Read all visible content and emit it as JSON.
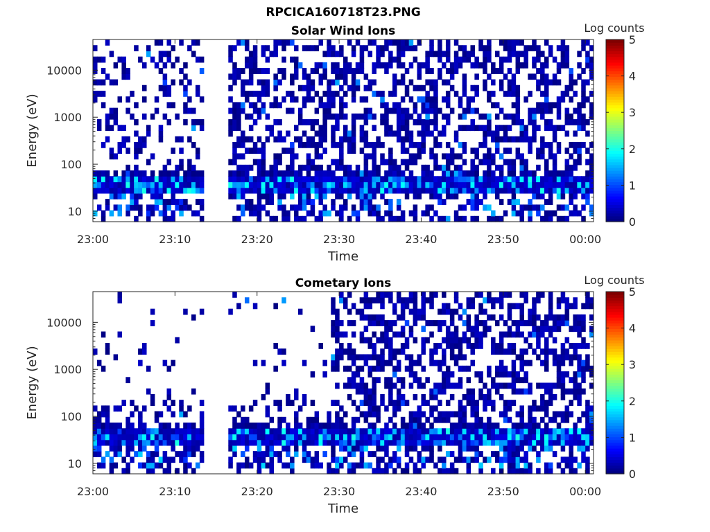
{
  "figure": {
    "title": "RPCICA160718T23.PNG"
  },
  "colorbar": {
    "label": "Log counts",
    "ticks": [
      "0",
      "1",
      "2",
      "3",
      "4",
      "5"
    ],
    "range": [
      0,
      5
    ],
    "colormap": "jet"
  },
  "chart_data": [
    {
      "type": "heatmap",
      "title": "Solar Wind Ions",
      "xlabel": "Time",
      "ylabel": "Energy (eV)",
      "xticks": [
        "23:00",
        "23:10",
        "23:20",
        "23:30",
        "23:40",
        "23:50",
        "00:00"
      ],
      "xlim_minutes": [
        0,
        61
      ],
      "yticks": [
        "10",
        "100",
        "1000",
        "10000"
      ],
      "yscale": "log",
      "ylim": [
        6,
        45000
      ],
      "data_gaps_minutes": [
        [
          13.3,
          16.5
        ]
      ],
      "peak_band_eV": [
        25,
        60
      ],
      "peak_log_counts": 2.0,
      "background": "sparse single counts (log 0–0.5) across all energies"
    },
    {
      "type": "heatmap",
      "title": "Cometary Ions",
      "xlabel": "Time",
      "ylabel": "Energy (eV)",
      "xticks": [
        "23:00",
        "23:10",
        "23:20",
        "23:30",
        "23:40",
        "23:50",
        "00:00"
      ],
      "xlim_minutes": [
        0,
        61
      ],
      "yticks": [
        "10",
        "100",
        "1000",
        "10000"
      ],
      "yscale": "log",
      "ylim": [
        6,
        45000
      ],
      "data_gaps_minutes": [
        [
          13.3,
          16.5
        ]
      ],
      "peak_band_eV": [
        25,
        60
      ],
      "peak_log_counts": 2.0,
      "background": "sparse before 23:29, dense single counts (log 0–0.5) after 23:29"
    }
  ]
}
